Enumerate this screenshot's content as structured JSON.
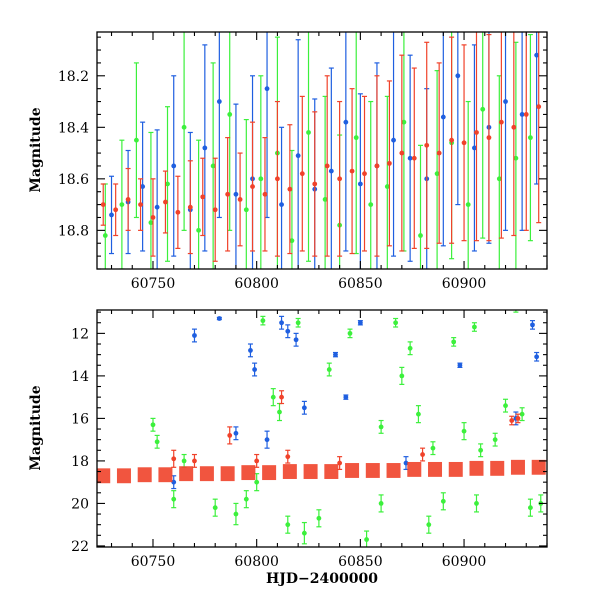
{
  "colors": {
    "blue": "#1f5fe0",
    "green": "#3cf03c",
    "red": "#f0422a"
  },
  "chart_data": [
    {
      "type": "scatter",
      "title": "",
      "xlabel": "",
      "ylabel": "Magnitude",
      "xlim": [
        60723,
        60940
      ],
      "ylim": [
        18.95,
        18.03
      ],
      "y_inverted": true,
      "x_ticks": [
        60750,
        60800,
        60850,
        60900
      ],
      "x_tick_labels": [
        "60750",
        "60800",
        "60850",
        "60900"
      ],
      "y_ticks": [
        18.2,
        18.4,
        18.6,
        18.8
      ],
      "y_tick_labels": [
        "18.2",
        "18.4",
        "18.6",
        "18.8"
      ],
      "grid": false,
      "series": [
        {
          "color": "blue",
          "x": [
            60730,
            60738,
            60745,
            60752,
            60760,
            60768,
            60775,
            60782,
            60790,
            60798,
            60805,
            60812,
            60820,
            60828,
            60836,
            60843,
            60850,
            60858,
            60866,
            60874,
            60882,
            60890,
            60897,
            60905,
            60912,
            60920,
            60928,
            60935
          ],
          "y": [
            18.74,
            18.69,
            18.63,
            18.71,
            18.55,
            18.72,
            18.48,
            18.3,
            18.66,
            18.6,
            18.25,
            18.7,
            18.51,
            18.64,
            18.57,
            18.38,
            18.62,
            18.55,
            18.45,
            18.52,
            18.6,
            18.36,
            18.2,
            18.48,
            18.4,
            18.3,
            18.35,
            18.12
          ],
          "err": [
            0.15,
            0.2,
            0.25,
            0.3,
            0.35,
            0.3,
            0.4,
            0.45,
            0.35,
            0.4,
            0.5,
            0.3,
            0.45,
            0.35,
            0.4,
            0.5,
            0.35,
            0.4,
            0.45,
            0.4,
            0.35,
            0.5,
            0.5,
            0.4,
            0.45,
            0.5,
            0.45,
            0.5
          ]
        },
        {
          "color": "green",
          "x": [
            60727,
            60735,
            60742,
            60749,
            60757,
            60765,
            60772,
            60779,
            60787,
            60795,
            60802,
            60810,
            60817,
            60825,
            60833,
            60840,
            60848,
            60855,
            60863,
            60871,
            60879,
            60887,
            60894,
            60902,
            60909,
            60917,
            60925,
            60932
          ],
          "y": [
            18.82,
            18.7,
            18.45,
            18.77,
            18.62,
            18.4,
            18.8,
            18.55,
            18.35,
            18.72,
            18.6,
            18.5,
            18.84,
            18.42,
            18.68,
            18.78,
            18.44,
            18.7,
            18.63,
            18.38,
            18.82,
            18.58,
            18.46,
            18.7,
            18.33,
            18.6,
            18.52,
            18.44
          ],
          "err": [
            0.2,
            0.25,
            0.3,
            0.35,
            0.3,
            0.4,
            0.35,
            0.4,
            0.45,
            0.35,
            0.4,
            0.45,
            0.35,
            0.5,
            0.4,
            0.35,
            0.45,
            0.4,
            0.35,
            0.5,
            0.35,
            0.4,
            0.45,
            0.4,
            0.5,
            0.4,
            0.45,
            0.4
          ]
        },
        {
          "color": "red",
          "x": [
            60726,
            60732,
            60738,
            60744,
            60750,
            60756,
            60762,
            60768,
            60774,
            60780,
            60786,
            60792,
            60798,
            60804,
            60810,
            60816,
            60822,
            60828,
            60834,
            60840,
            60846,
            60852,
            60858,
            60864,
            60870,
            60876,
            60882,
            60888,
            60894,
            60900,
            60906,
            60912,
            60918,
            60924,
            60930,
            60936
          ],
          "y": [
            18.7,
            18.72,
            18.68,
            18.7,
            18.75,
            18.69,
            18.73,
            18.71,
            18.67,
            18.72,
            18.66,
            18.68,
            18.63,
            18.66,
            18.6,
            18.64,
            18.58,
            18.62,
            18.55,
            18.6,
            18.57,
            18.58,
            18.55,
            18.54,
            18.5,
            18.52,
            18.47,
            18.5,
            18.45,
            18.46,
            18.42,
            18.44,
            18.38,
            18.4,
            18.35,
            18.32
          ],
          "err": [
            0.08,
            0.1,
            0.12,
            0.1,
            0.15,
            0.12,
            0.14,
            0.18,
            0.15,
            0.2,
            0.22,
            0.18,
            0.25,
            0.22,
            0.3,
            0.25,
            0.3,
            0.28,
            0.35,
            0.3,
            0.32,
            0.3,
            0.35,
            0.32,
            0.38,
            0.35,
            0.4,
            0.35,
            0.4,
            0.38,
            0.42,
            0.4,
            0.45,
            0.42,
            0.45,
            0.45
          ]
        }
      ]
    },
    {
      "type": "scatter",
      "title": "",
      "xlabel": "HJD−2400000",
      "ylabel": "Magnitude",
      "xlim": [
        60723,
        60940
      ],
      "ylim": [
        22.05,
        10.9
      ],
      "y_inverted": true,
      "x_ticks": [
        60750,
        60800,
        60850,
        60900
      ],
      "x_tick_labels": [
        "60750",
        "60800",
        "60850",
        "60900"
      ],
      "y_ticks": [
        12,
        14,
        16,
        18,
        20,
        22
      ],
      "y_tick_labels": [
        "12",
        "14",
        "16",
        "18",
        "20",
        "22"
      ],
      "grid": false,
      "series": [
        {
          "color": "blue",
          "x": [
            60770,
            60782,
            60797,
            60799,
            60812,
            60815,
            60819,
            60823,
            60838,
            60843,
            60850,
            60872,
            60898,
            60925,
            60933,
            60935,
            60805,
            60760,
            60790
          ],
          "y": [
            12.1,
            11.3,
            12.8,
            13.7,
            11.5,
            11.9,
            12.3,
            15.5,
            13.0,
            15.0,
            11.5,
            18.1,
            13.5,
            16.0,
            11.6,
            13.1,
            17.0,
            19.0,
            16.7
          ],
          "err": [
            0.3,
            0.05,
            0.3,
            0.3,
            0.3,
            0.3,
            0.3,
            0.3,
            0.1,
            0.1,
            0.1,
            0.3,
            0.1,
            0.3,
            0.2,
            0.2,
            0.4,
            0.3,
            0.3
          ]
        },
        {
          "color": "green",
          "x": [
            60750,
            60752,
            60765,
            60790,
            60795,
            60803,
            60808,
            60811,
            60815,
            60820,
            60823,
            60835,
            60845,
            60853,
            60860,
            60867,
            60870,
            60874,
            60878,
            60883,
            60885,
            60895,
            60900,
            60905,
            60908,
            60915,
            60920,
            60925,
            60928,
            60932,
            60760,
            60780,
            60800,
            60830,
            60860,
            60890,
            60906,
            60937
          ],
          "y": [
            16.3,
            17.1,
            18.0,
            20.5,
            19.8,
            11.4,
            15.0,
            15.7,
            21.0,
            11.5,
            21.4,
            13.7,
            12.0,
            21.7,
            16.4,
            11.5,
            14.0,
            12.7,
            15.8,
            21.0,
            17.4,
            12.4,
            16.6,
            11.7,
            17.5,
            17.0,
            15.4,
            10.8,
            15.8,
            20.2,
            19.8,
            20.2,
            19.0,
            20.7,
            20.0,
            19.9,
            20.0,
            20.0
          ],
          "err": [
            0.3,
            0.3,
            0.3,
            0.5,
            0.4,
            0.2,
            0.4,
            0.4,
            0.4,
            0.2,
            0.5,
            0.3,
            0.2,
            0.4,
            0.3,
            0.2,
            0.4,
            0.3,
            0.4,
            0.4,
            0.3,
            0.2,
            0.4,
            0.2,
            0.3,
            0.3,
            0.3,
            0.2,
            0.3,
            0.4,
            0.4,
            0.4,
            0.4,
            0.4,
            0.4,
            0.4,
            0.4,
            0.4
          ]
        },
        {
          "color": "red",
          "x": [
            60770,
            60787,
            60812,
            60815,
            60923,
            60926,
            60760,
            60800,
            60840,
            60880
          ],
          "y": [
            18.0,
            16.8,
            15.0,
            17.8,
            16.1,
            16.0,
            17.9,
            18.0,
            18.1,
            17.7
          ],
          "err": [
            0.3,
            0.4,
            0.3,
            0.3,
            0.2,
            0.2,
            0.4,
            0.3,
            0.3,
            0.3
          ]
        },
        {
          "color": "red",
          "band": true,
          "x": [
            60726,
            60736,
            60746,
            60756,
            60766,
            60776,
            60786,
            60796,
            60806,
            60816,
            60826,
            60836,
            60846,
            60856,
            60866,
            60876,
            60886,
            60896,
            60906,
            60916,
            60926,
            60936
          ],
          "y": [
            18.7,
            18.7,
            18.65,
            18.65,
            18.6,
            18.6,
            18.6,
            18.55,
            18.55,
            18.5,
            18.5,
            18.5,
            18.45,
            18.45,
            18.45,
            18.4,
            18.4,
            18.4,
            18.35,
            18.35,
            18.3,
            18.3
          ],
          "err": [
            0.35,
            0.35,
            0.35,
            0.35,
            0.35,
            0.35,
            0.35,
            0.35,
            0.35,
            0.35,
            0.35,
            0.35,
            0.35,
            0.35,
            0.35,
            0.35,
            0.35,
            0.35,
            0.35,
            0.35,
            0.35,
            0.35
          ]
        }
      ]
    }
  ]
}
